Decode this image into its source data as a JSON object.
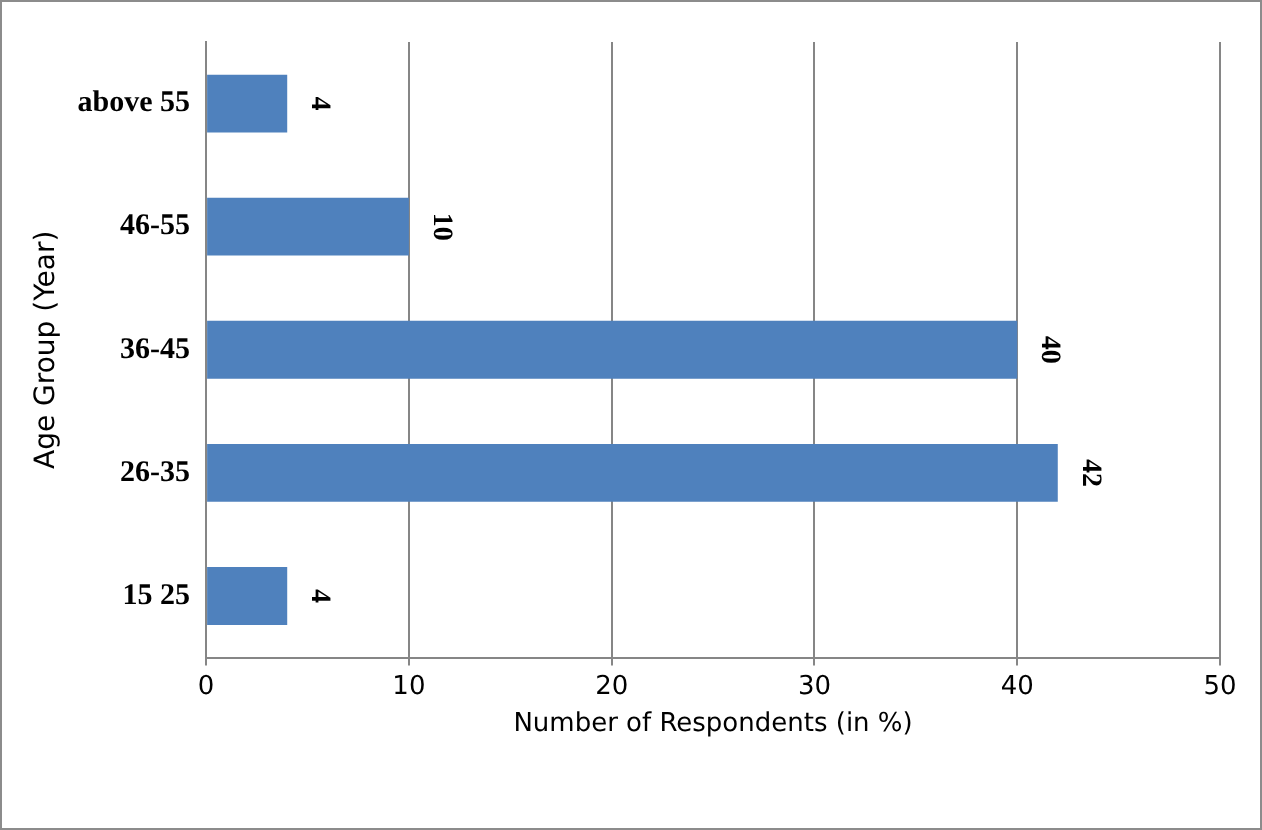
{
  "chart_data": {
    "type": "bar",
    "orientation": "horizontal",
    "categories": [
      "above 55",
      "46-55",
      "36-45",
      "26-35",
      "15 25"
    ],
    "values": [
      4,
      10,
      40,
      42,
      4
    ],
    "color": "#4f81bd",
    "data_labels": true,
    "xlim": [
      0,
      50
    ],
    "xticks": [
      0,
      10,
      20,
      30,
      40,
      50
    ],
    "grid": "x",
    "legend": false,
    "xlabel": "Number of Respondents (in %)",
    "ylabel": "Age Group (Year)"
  }
}
